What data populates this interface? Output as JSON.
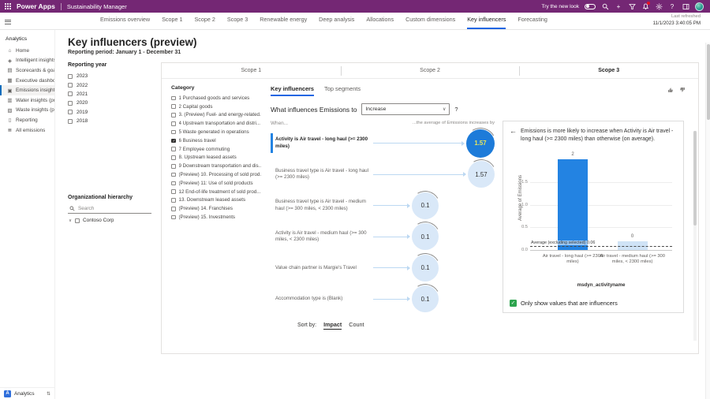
{
  "app": {
    "brand": "Power Apps",
    "name": "Sustainability Manager",
    "try_new_look": "Try the new look",
    "last_refreshed_label": "Last refreshed",
    "last_refreshed_value": "11/1/2023 3:40:05 PM"
  },
  "top_tabs": [
    {
      "label": "Emissions overview",
      "selected": false
    },
    {
      "label": "Scope 1",
      "selected": false
    },
    {
      "label": "Scope 2",
      "selected": false
    },
    {
      "label": "Scope 3",
      "selected": false
    },
    {
      "label": "Renewable energy",
      "selected": false
    },
    {
      "label": "Deep analysis",
      "selected": false
    },
    {
      "label": "Allocations",
      "selected": false
    },
    {
      "label": "Custom dimensions",
      "selected": false
    },
    {
      "label": "Key influencers",
      "selected": true
    },
    {
      "label": "Forecasting",
      "selected": false
    }
  ],
  "sidebar": {
    "section": "Analytics",
    "items": [
      {
        "label": "Home",
        "icon": "⌂",
        "icon_name": "home-icon",
        "selected": false
      },
      {
        "label": "Intelligent insights (p...",
        "icon": "◈",
        "icon_name": "intelligent-insights-icon",
        "selected": false
      },
      {
        "label": "Scorecards & goals",
        "icon": "▤",
        "icon_name": "scorecards-icon",
        "selected": false
      },
      {
        "label": "Executive dashboard",
        "icon": "▦",
        "icon_name": "dashboard-icon",
        "selected": false
      },
      {
        "label": "Emissions insights",
        "icon": "▣",
        "icon_name": "emissions-insights-icon",
        "selected": true
      },
      {
        "label": "Water insights (previ...",
        "icon": "▥",
        "icon_name": "water-insights-icon",
        "selected": false
      },
      {
        "label": "Waste insights (previ...",
        "icon": "▧",
        "icon_name": "waste-insights-icon",
        "selected": false
      },
      {
        "label": "Reporting",
        "icon": "▯",
        "icon_name": "reporting-icon",
        "selected": false
      },
      {
        "label": "All emissions",
        "icon": "≣",
        "icon_name": "all-emissions-icon",
        "selected": false
      }
    ],
    "footer": {
      "badge": "A",
      "label": "Analytics"
    }
  },
  "page": {
    "title": "Key influencers (preview)",
    "subtitle": "Reporting period: January 1 - December 31"
  },
  "filters": {
    "reporting_year_title": "Reporting year",
    "years": [
      "2023",
      "2022",
      "2021",
      "2020",
      "2019",
      "2018"
    ],
    "org_title": "Organizational hierarchy",
    "search_placeholder": "Search",
    "org_root": "Contoso Corp"
  },
  "scope_tabs": [
    {
      "label": "Scope 1",
      "selected": false
    },
    {
      "label": "Scope 2",
      "selected": false
    },
    {
      "label": "Scope 3",
      "selected": true
    }
  ],
  "category": {
    "title": "Category",
    "items": [
      {
        "label": "1 Purchased goods and services",
        "checked": false
      },
      {
        "label": "2 Capital goods",
        "checked": false
      },
      {
        "label": "3. (Preview) Fuel- and energy-related...",
        "checked": false
      },
      {
        "label": "4 Upstream transportation and distri...",
        "checked": false
      },
      {
        "label": "5 Waste generated in operations",
        "checked": false
      },
      {
        "label": "6 Business travel",
        "checked": true
      },
      {
        "label": "7 Employee commuting",
        "checked": false
      },
      {
        "label": "8. Upstream leased assets",
        "checked": false
      },
      {
        "label": "9 Downstream transportation and dis...",
        "checked": false
      },
      {
        "label": "(Preview) 10. Processing of sold prod...",
        "checked": false
      },
      {
        "label": "(Preview) 11: Use of sold products",
        "checked": false
      },
      {
        "label": "12 End-of-life treatment of sold prod...",
        "checked": false
      },
      {
        "label": "13. Downstream leased assets",
        "checked": false
      },
      {
        "label": "(Preview) 14. Franchises",
        "checked": false
      },
      {
        "label": "(Preview) 15. Investments",
        "checked": false
      }
    ]
  },
  "influencers": {
    "tabs": [
      {
        "label": "Key influencers",
        "selected": true
      },
      {
        "label": "Top segments",
        "selected": false
      }
    ],
    "question_prefix": "What influences Emissions to",
    "question_value": "Increase",
    "question_suffix": "?",
    "when_label": "When...",
    "increase_label": "...the average of Emissions increases by",
    "items": [
      {
        "text": "Activity is Air travel - long haul (>= 2300 miles)",
        "value": "1.57",
        "selected": true
      },
      {
        "text": "Business travel type is Air travel - long haul (>= 2300 miles)",
        "value": "1.57",
        "selected": false
      },
      {
        "text": "Business travel type is Air travel - medium haul (>= 300 miles, < 2300 miles)",
        "value": "0.1",
        "selected": false
      },
      {
        "text": "Activity is Air travel - medium haul (>= 300 miles, < 2300 miles)",
        "value": "0.1",
        "selected": false
      },
      {
        "text": "Value chain partner is Margie's Travel",
        "value": "0.1",
        "selected": false
      },
      {
        "text": "Accommodation type is (Blank)",
        "value": "0.1",
        "selected": false
      }
    ],
    "sort_label": "Sort by:",
    "sort_options": [
      {
        "label": "Impact",
        "selected": true
      },
      {
        "label": "Count",
        "selected": false
      }
    ]
  },
  "detail": {
    "headline": "Emissions is more likely to increase when Activity is Air travel - long haul (>= 2300 miles) than otherwise (on average).",
    "checkbox_label": "Only show values that are influencers",
    "checkbox_checked": true
  },
  "chart_data": {
    "type": "bar",
    "categories": [
      "Air travel - long haul (>= 2300 miles)",
      "Air travel - medium haul (>= 300 miles, < 2300 miles)"
    ],
    "values": [
      2,
      0.18
    ],
    "bar_labels": [
      "2",
      "0"
    ],
    "bar_colors": [
      "#2383e2",
      "#cfe3f6"
    ],
    "xlabel": "msdyn_activityname",
    "ylabel": "Average of Emissions",
    "yticks": [
      0.0,
      0.5,
      1.0,
      1.5
    ],
    "ylim": [
      0,
      2.05
    ],
    "grid": true,
    "avg_line": {
      "value": 0.06,
      "label": "Average (excluding selected) 0.06"
    }
  },
  "colors": {
    "header_purple": "#742774",
    "accent_blue": "#2266e3",
    "bar_blue": "#2383e2",
    "bubble_light": "#d9e8f8",
    "bubble_dark": "#1d7bd9",
    "bubble_number_yellow": "#e9e75a",
    "influencer_checkbox_green": "#2da44e",
    "notification_red": "#e81123"
  }
}
